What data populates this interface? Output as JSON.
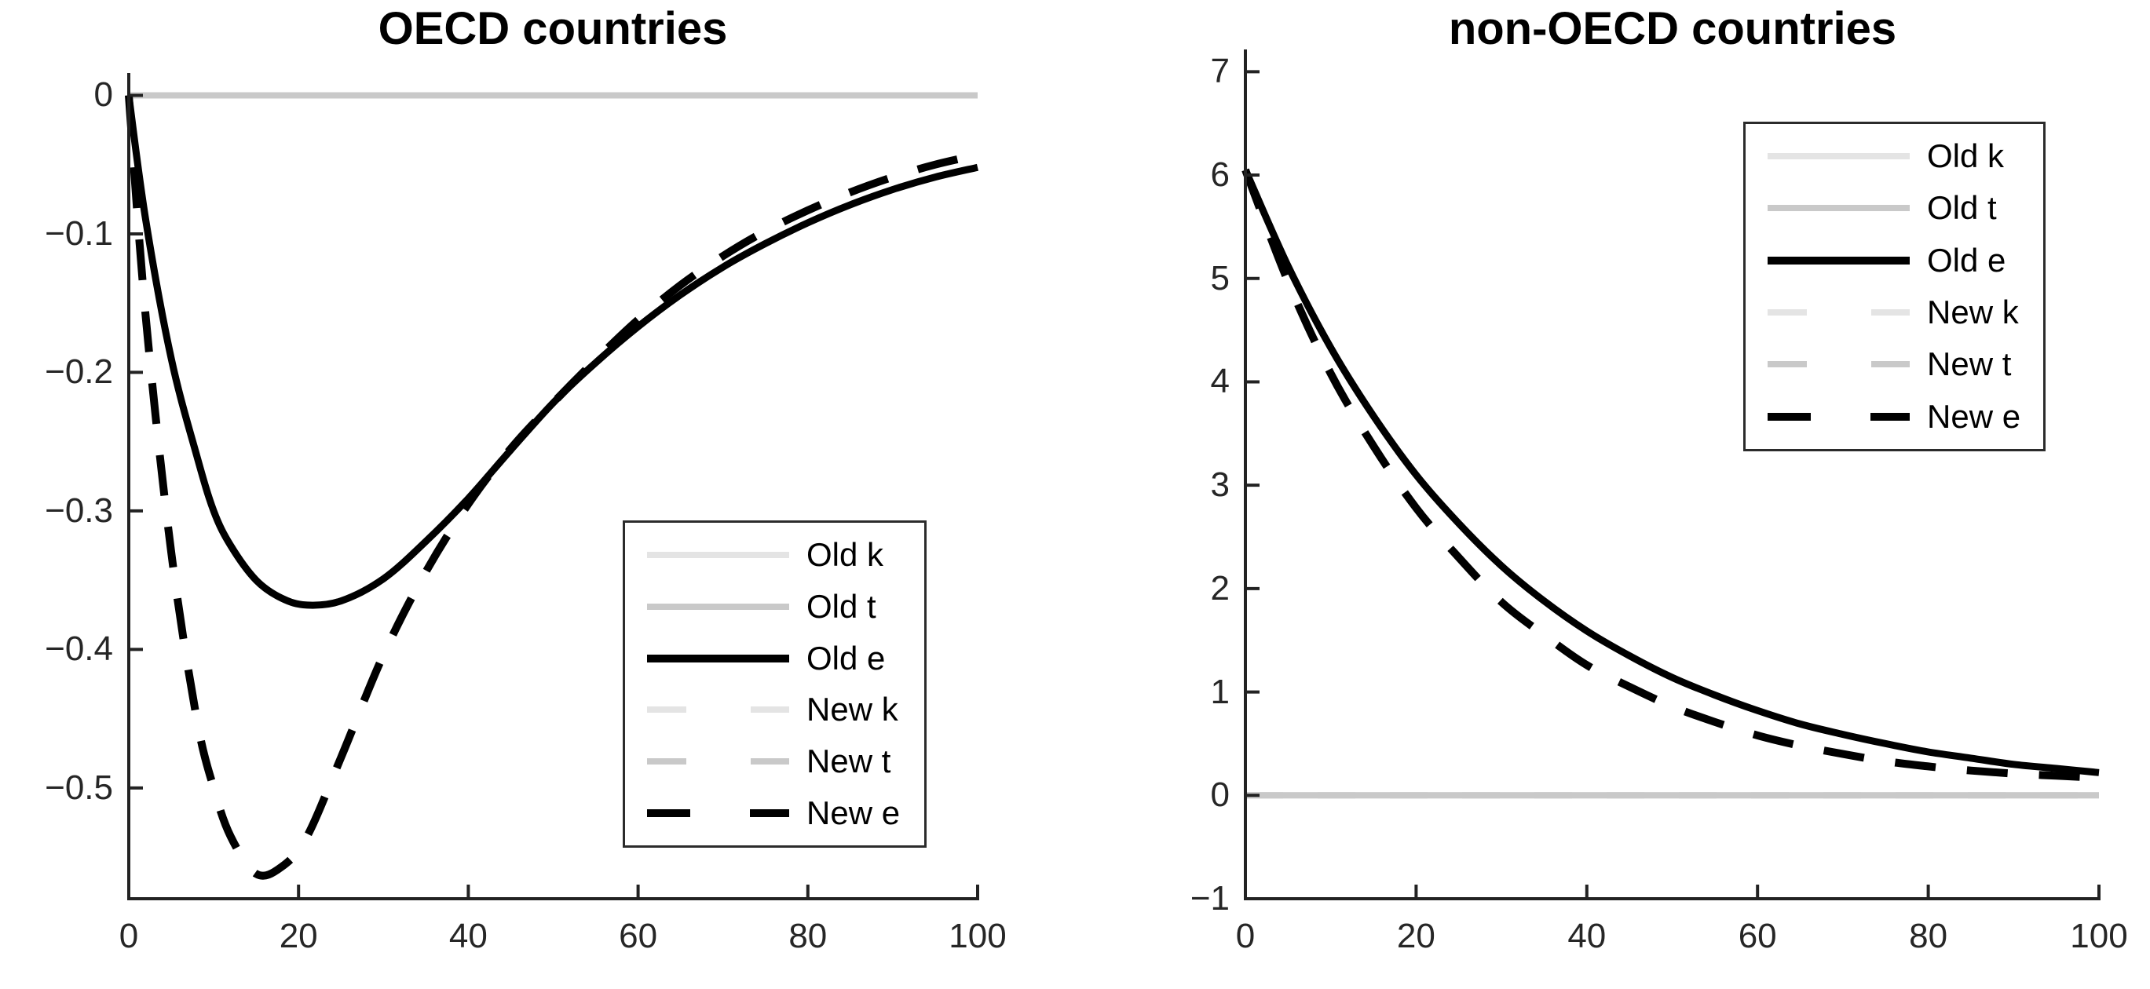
{
  "chart_data": [
    {
      "type": "line",
      "title": "OECD countries",
      "xlabel": "",
      "ylabel": "",
      "xlim": [
        0,
        100
      ],
      "ylim": [
        -0.58,
        0.015
      ],
      "grid": false,
      "legend_position": "inside lower right",
      "xticks": [
        "0",
        "20",
        "40",
        "60",
        "80",
        "100"
      ],
      "xtick_values": [
        0,
        20,
        40,
        60,
        80,
        100
      ],
      "yticks": [
        "0",
        "−0.1",
        "−0.2",
        "−0.3",
        "−0.4",
        "−0.5"
      ],
      "ytick_values": [
        0,
        -0.1,
        -0.2,
        -0.3,
        -0.4,
        -0.5
      ],
      "series": [
        {
          "name": "Old k",
          "color": "#e4e4e4",
          "width": 8,
          "dash": null,
          "x": [
            0,
            100
          ],
          "y": [
            0,
            0
          ]
        },
        {
          "name": "Old t",
          "color": "#c9c9c9",
          "width": 8,
          "dash": null,
          "x": [
            0,
            100
          ],
          "y": [
            0,
            0
          ]
        },
        {
          "name": "New k",
          "color": "#e4e4e4",
          "width": 8,
          "dash": "48 44",
          "x": [
            0,
            100
          ],
          "y": [
            0,
            0
          ]
        },
        {
          "name": "New t",
          "color": "#c9c9c9",
          "width": 8,
          "dash": "48 44",
          "x": [
            0,
            100
          ],
          "y": [
            0,
            0
          ]
        },
        {
          "name": "Old e",
          "color": "#000000",
          "width": 9,
          "dash": null,
          "x": [
            0,
            2,
            5,
            8,
            10,
            12,
            15,
            18,
            21,
            25,
            30,
            35,
            40,
            45,
            50,
            55,
            60,
            65,
            70,
            75,
            80,
            85,
            90,
            95,
            100
          ],
          "y": [
            0,
            -0.09,
            -0.19,
            -0.26,
            -0.3,
            -0.325,
            -0.35,
            -0.363,
            -0.368,
            -0.365,
            -0.349,
            -0.322,
            -0.291,
            -0.256,
            -0.222,
            -0.193,
            -0.167,
            -0.144,
            -0.124,
            -0.107,
            -0.092,
            -0.079,
            -0.068,
            -0.059,
            -0.052
          ]
        },
        {
          "name": "New e",
          "color": "#000000",
          "width": 10,
          "dash": "52 40",
          "x": [
            0,
            2,
            5,
            8,
            10,
            12,
            15,
            18,
            21,
            25,
            30,
            35,
            40,
            45,
            50,
            55,
            60,
            65,
            70,
            75,
            80,
            85,
            90,
            95,
            100
          ],
          "y": [
            0,
            -0.16,
            -0.33,
            -0.45,
            -0.5,
            -0.535,
            -0.562,
            -0.557,
            -0.535,
            -0.478,
            -0.404,
            -0.344,
            -0.295,
            -0.255,
            -0.222,
            -0.191,
            -0.162,
            -0.137,
            -0.116,
            -0.098,
            -0.083,
            -0.07,
            -0.059,
            -0.05,
            -0.043
          ]
        }
      ]
    },
    {
      "type": "line",
      "title": "non-OECD countries",
      "xlabel": "",
      "ylabel": "",
      "xlim": [
        0,
        100
      ],
      "ylim": [
        -1,
        7.2
      ],
      "grid": false,
      "legend_position": "inside upper right",
      "xticks": [
        "0",
        "20",
        "40",
        "60",
        "80",
        "100"
      ],
      "xtick_values": [
        0,
        20,
        40,
        60,
        80,
        100
      ],
      "yticks": [
        "7",
        "6",
        "5",
        "4",
        "3",
        "2",
        "1",
        "0",
        "−1"
      ],
      "ytick_values": [
        7,
        6,
        5,
        4,
        3,
        2,
        1,
        0,
        -1
      ],
      "series": [
        {
          "name": "Old k",
          "color": "#e4e4e4",
          "width": 8,
          "dash": null,
          "x": [
            0,
            100
          ],
          "y": [
            0,
            0
          ]
        },
        {
          "name": "Old t",
          "color": "#c9c9c9",
          "width": 8,
          "dash": null,
          "x": [
            0,
            100
          ],
          "y": [
            0,
            0
          ]
        },
        {
          "name": "New k",
          "color": "#e4e4e4",
          "width": 8,
          "dash": "48 44",
          "x": [
            0,
            100
          ],
          "y": [
            0,
            0
          ]
        },
        {
          "name": "New t",
          "color": "#c9c9c9",
          "width": 8,
          "dash": "48 44",
          "x": [
            0,
            100
          ],
          "y": [
            0,
            0
          ]
        },
        {
          "name": "Old e",
          "color": "#000000",
          "width": 9,
          "dash": null,
          "x": [
            0,
            5,
            10,
            15,
            20,
            25,
            30,
            35,
            40,
            45,
            50,
            55,
            60,
            65,
            70,
            75,
            80,
            85,
            90,
            95,
            100
          ],
          "y": [
            6.05,
            5.12,
            4.33,
            3.67,
            3.1,
            2.63,
            2.22,
            1.88,
            1.59,
            1.35,
            1.14,
            0.97,
            0.82,
            0.69,
            0.59,
            0.5,
            0.42,
            0.36,
            0.3,
            0.26,
            0.22
          ]
        },
        {
          "name": "New e",
          "color": "#000000",
          "width": 10,
          "dash": "52 40",
          "x": [
            0,
            5,
            10,
            15,
            20,
            25,
            30,
            35,
            40,
            45,
            50,
            55,
            60,
            65,
            70,
            75,
            80,
            85,
            90,
            95,
            100
          ],
          "y": [
            6.05,
            4.97,
            4.08,
            3.38,
            2.78,
            2.3,
            1.87,
            1.55,
            1.26,
            1.05,
            0.86,
            0.71,
            0.58,
            0.48,
            0.4,
            0.33,
            0.28,
            0.24,
            0.21,
            0.19,
            0.17
          ]
        }
      ]
    }
  ],
  "legend": {
    "items": [
      {
        "label": "Old k",
        "color": "#e4e4e4",
        "swatch_width": 8,
        "legend_dash": null
      },
      {
        "label": "Old t",
        "color": "#c9c9c9",
        "swatch_width": 8,
        "legend_dash": null
      },
      {
        "label": "Old e",
        "color": "#000000",
        "swatch_width": 10,
        "legend_dash": null
      },
      {
        "label": "New k",
        "color": "#e4e4e4",
        "swatch_width": 8,
        "legend_dash": "50 82"
      },
      {
        "label": "New t",
        "color": "#c9c9c9",
        "swatch_width": 8,
        "legend_dash": "50 82"
      },
      {
        "label": "New e",
        "color": "#000000",
        "swatch_width": 10,
        "legend_dash": "55 76"
      }
    ]
  },
  "axis": {
    "spine_color": "#222222",
    "tick_label_color": "#262626"
  }
}
